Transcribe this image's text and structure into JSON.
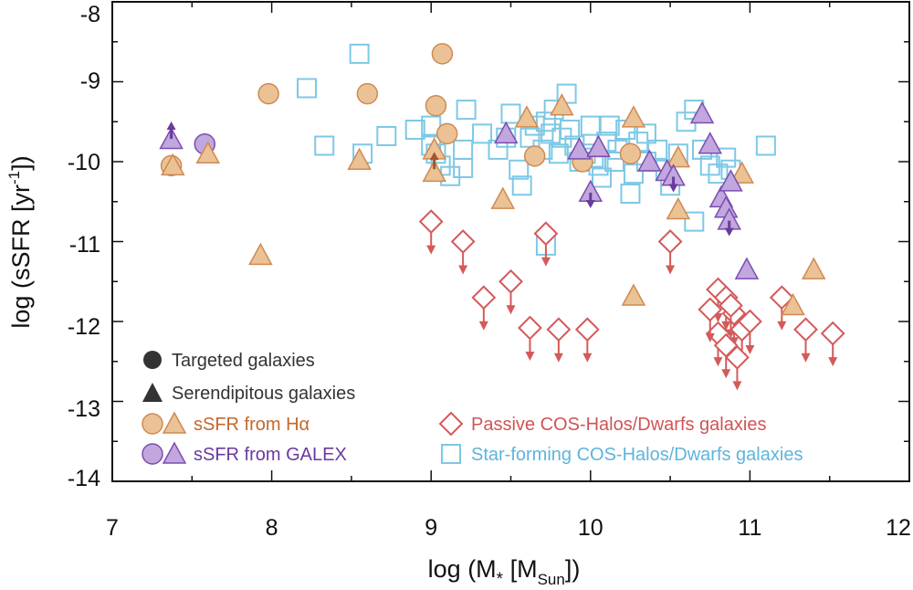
{
  "chart_data": {
    "type": "scatter",
    "xlabel": "log (M",
    "xlabel_sub1": "*",
    "xlabel_mid": " [M",
    "xlabel_sub2": "Sun",
    "xlabel_end": "])",
    "ylabel": "log (sSFR [yr",
    "ylabel_sup": "-1",
    "ylabel_end": "])",
    "xlim": [
      7,
      12
    ],
    "ylim": [
      -14,
      -8
    ],
    "x_ticks": [
      "7",
      "8",
      "9",
      "10",
      "11",
      "12"
    ],
    "y_ticks": [
      "-14",
      "-13",
      "-12",
      "-11",
      "-10",
      "-9",
      "-8"
    ],
    "colors": {
      "orange_fill": "#ebc295",
      "orange_edge": "#cf8a52",
      "purple_fill": "#c2a6de",
      "purple_edge": "#7a4fae",
      "purple_arrow": "#6a3a9e",
      "red_edge": "#d45a5a",
      "blue_edge": "#7dc8e6",
      "dark": "#333333",
      "halpha_text": "#c6672a",
      "galex_text": "#6a3a9e",
      "passive_text": "#d05454",
      "sf_text": "#5fb4dc"
    },
    "legend": {
      "targeted": "Targeted galaxies",
      "serendipitous": "Serendipitous galaxies",
      "halpha": "sSFR from Hα",
      "galex": "sSFR from GALEX",
      "passive": "Passive COS-Halos/Dwarfs galaxies",
      "starforming": "Star-forming COS-Halos/Dwarfs galaxies"
    },
    "series": [
      {
        "name": "Star-forming COS-Halos/Dwarfs galaxies",
        "marker": "square",
        "points": [
          [
            8.55,
            -8.65
          ],
          [
            8.22,
            -9.08
          ],
          [
            8.33,
            -9.8
          ],
          [
            8.57,
            -9.9
          ],
          [
            8.72,
            -9.68
          ],
          [
            8.9,
            -9.6
          ],
          [
            9.0,
            -9.55
          ],
          [
            9.0,
            -9.8
          ],
          [
            9.03,
            -9.9
          ],
          [
            9.06,
            -10.05
          ],
          [
            9.12,
            -10.18
          ],
          [
            9.2,
            -10.08
          ],
          [
            9.2,
            -9.85
          ],
          [
            9.22,
            -9.35
          ],
          [
            9.32,
            -9.65
          ],
          [
            9.42,
            -9.85
          ],
          [
            9.47,
            -9.7
          ],
          [
            9.5,
            -9.4
          ],
          [
            9.55,
            -10.1
          ],
          [
            9.57,
            -10.3
          ],
          [
            9.62,
            -9.7
          ],
          [
            9.65,
            -9.55
          ],
          [
            9.7,
            -9.85
          ],
          [
            9.72,
            -9.5
          ],
          [
            9.75,
            -9.65
          ],
          [
            9.77,
            -9.35
          ],
          [
            9.8,
            -9.9
          ],
          [
            9.82,
            -9.7
          ],
          [
            9.85,
            -9.15
          ],
          [
            9.87,
            -9.6
          ],
          [
            9.9,
            -9.8
          ],
          [
            9.93,
            -10.0
          ],
          [
            9.97,
            -9.9
          ],
          [
            10.0,
            -9.55
          ],
          [
            10.02,
            -9.95
          ],
          [
            10.05,
            -10.05
          ],
          [
            10.07,
            -10.2
          ],
          [
            10.1,
            -9.75
          ],
          [
            10.12,
            -9.55
          ],
          [
            10.15,
            -10.0
          ],
          [
            10.17,
            -9.85
          ],
          [
            10.22,
            -9.6
          ],
          [
            10.27,
            -10.15
          ],
          [
            10.3,
            -9.75
          ],
          [
            10.35,
            -9.65
          ],
          [
            10.35,
            -10.0
          ],
          [
            10.42,
            -9.85
          ],
          [
            10.47,
            -10.1
          ],
          [
            10.5,
            -10.3
          ],
          [
            10.55,
            -9.9
          ],
          [
            10.6,
            -9.5
          ],
          [
            10.65,
            -9.35
          ],
          [
            10.7,
            -9.85
          ],
          [
            10.75,
            -10.05
          ],
          [
            10.8,
            -10.15
          ],
          [
            10.85,
            -9.95
          ],
          [
            10.88,
            -10.1
          ],
          [
            10.65,
            -10.75
          ],
          [
            11.1,
            -9.8
          ],
          [
            10.25,
            -10.4
          ],
          [
            9.72,
            -11.05
          ]
        ]
      },
      {
        "name": "Passive COS-Halos/Dwarfs galaxies",
        "marker": "diamond-upperlimit",
        "points": [
          [
            9.0,
            -10.75
          ],
          [
            9.2,
            -11.0
          ],
          [
            9.33,
            -11.7
          ],
          [
            9.5,
            -11.5
          ],
          [
            9.62,
            -12.08
          ],
          [
            9.72,
            -10.9
          ],
          [
            9.8,
            -12.1
          ],
          [
            9.98,
            -12.1
          ],
          [
            10.5,
            -11.0
          ],
          [
            10.8,
            -11.6
          ],
          [
            10.85,
            -11.7
          ],
          [
            10.9,
            -11.9
          ],
          [
            10.88,
            -11.8
          ],
          [
            10.95,
            -12.1
          ],
          [
            10.8,
            -12.15
          ],
          [
            10.85,
            -12.3
          ],
          [
            10.92,
            -12.45
          ],
          [
            11.0,
            -12.0
          ],
          [
            11.2,
            -11.7
          ],
          [
            11.35,
            -12.1
          ],
          [
            11.52,
            -12.15
          ],
          [
            10.75,
            -11.85
          ]
        ]
      },
      {
        "name": "Targeted galaxies, sSFR from Hα",
        "marker": "circle",
        "color": "orange",
        "points": [
          [
            7.37,
            -10.05
          ],
          [
            7.98,
            -9.15
          ],
          [
            8.6,
            -9.15
          ],
          [
            9.07,
            -8.65
          ],
          [
            9.03,
            -9.3
          ],
          [
            9.1,
            -9.65
          ],
          [
            9.65,
            -9.93
          ],
          [
            9.95,
            -10.0
          ],
          [
            10.25,
            -9.9
          ]
        ]
      },
      {
        "name": "Targeted galaxies, sSFR from GALEX",
        "marker": "circle",
        "color": "purple",
        "points": [
          [
            7.58,
            -9.78
          ]
        ]
      },
      {
        "name": "Serendipitous galaxies, sSFR from Hα",
        "marker": "triangle",
        "color": "orange",
        "points": [
          [
            7.38,
            -10.05
          ],
          [
            7.6,
            -9.9
          ],
          [
            7.93,
            -11.17
          ],
          [
            8.55,
            -9.98
          ],
          [
            9.02,
            -10.13
          ],
          [
            9.45,
            -10.47
          ],
          [
            9.6,
            -9.45
          ],
          [
            9.82,
            -9.3
          ],
          [
            10.27,
            -9.45
          ],
          [
            10.27,
            -11.68
          ],
          [
            10.55,
            -9.95
          ],
          [
            10.55,
            -10.6
          ],
          [
            10.95,
            -10.15
          ],
          [
            11.27,
            -11.8
          ],
          [
            11.4,
            -11.35
          ],
          [
            9.02,
            -9.85
          ]
        ]
      },
      {
        "name": "Serendipitous galaxies, sSFR from GALEX",
        "marker": "triangle",
        "color": "purple",
        "points": [
          [
            7.37,
            -9.72
          ],
          [
            9.47,
            -9.65
          ],
          [
            9.93,
            -9.85
          ],
          [
            10.0,
            -10.38
          ],
          [
            10.05,
            -9.82
          ],
          [
            10.37,
            -10.0
          ],
          [
            10.48,
            -10.12
          ],
          [
            10.52,
            -10.18
          ],
          [
            10.7,
            -9.4
          ],
          [
            10.75,
            -9.78
          ],
          [
            10.82,
            -10.45
          ],
          [
            10.85,
            -10.58
          ],
          [
            10.87,
            -10.73
          ],
          [
            10.88,
            -10.25
          ],
          [
            10.98,
            -11.35
          ]
        ]
      },
      {
        "name": "Upper-limit arrows (purple)",
        "marker": "arrow-down",
        "color": "purple",
        "points": [
          [
            10.0,
            -10.48
          ],
          [
            10.87,
            -10.83
          ],
          [
            10.52,
            -10.28
          ]
        ]
      },
      {
        "name": "Lower-limit arrows (purple)",
        "marker": "arrow-up",
        "color": "purple",
        "points": [
          [
            7.37,
            -9.6
          ]
        ]
      },
      {
        "name": "Lower-limit arrows (orange)",
        "marker": "arrow-up",
        "color": "orange",
        "points": [
          [
            9.02,
            -9.98
          ]
        ]
      }
    ]
  }
}
